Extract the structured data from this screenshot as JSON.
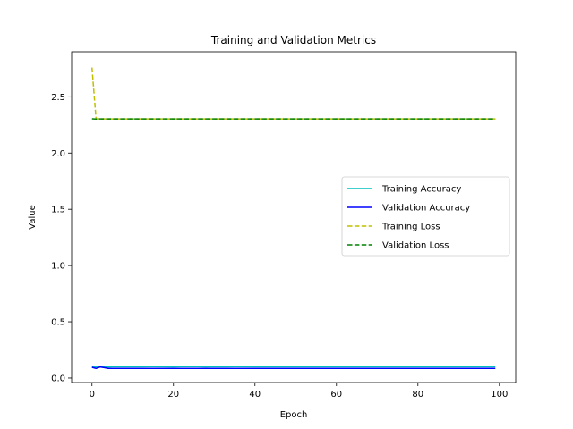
{
  "chart_data": {
    "type": "line",
    "title": "Training and Validation Metrics",
    "xlabel": "Epoch",
    "ylabel": "Value",
    "xlim": [
      -5,
      104
    ],
    "ylim": [
      -0.04,
      2.9
    ],
    "x_ticks": [
      0,
      20,
      40,
      60,
      80,
      100
    ],
    "x_tick_labels": [
      "0",
      "20",
      "40",
      "60",
      "80",
      "100"
    ],
    "y_ticks": [
      0.0,
      0.5,
      1.0,
      1.5,
      2.0,
      2.5
    ],
    "y_tick_labels": [
      "0.0",
      "0.5",
      "1.0",
      "1.5",
      "2.0",
      "2.5"
    ],
    "grid": false,
    "legend_position": "center-right",
    "series": [
      {
        "name": "Training Accuracy",
        "color": "#00bfbf",
        "style": "solid",
        "points": [
          [
            0,
            0.1
          ],
          [
            1,
            0.098
          ],
          [
            2,
            0.1
          ],
          [
            3,
            0.099
          ],
          [
            4,
            0.098
          ],
          [
            5,
            0.1
          ],
          [
            6,
            0.101
          ],
          [
            8,
            0.1
          ],
          [
            10,
            0.101
          ],
          [
            12,
            0.1
          ],
          [
            15,
            0.101
          ],
          [
            18,
            0.1
          ],
          [
            20,
            0.099
          ],
          [
            22,
            0.101
          ],
          [
            24,
            0.102
          ],
          [
            26,
            0.101
          ],
          [
            28,
            0.099
          ],
          [
            30,
            0.101
          ],
          [
            32,
            0.1
          ],
          [
            35,
            0.101
          ],
          [
            40,
            0.1
          ],
          [
            50,
            0.1
          ],
          [
            60,
            0.1
          ],
          [
            70,
            0.1
          ],
          [
            80,
            0.1
          ],
          [
            90,
            0.1
          ],
          [
            99,
            0.1
          ]
        ]
      },
      {
        "name": "Validation Accuracy",
        "color": "#0000ff",
        "style": "solid",
        "points": [
          [
            0,
            0.095
          ],
          [
            1,
            0.085
          ],
          [
            2,
            0.098
          ],
          [
            3,
            0.092
          ],
          [
            4,
            0.085
          ],
          [
            5,
            0.085
          ],
          [
            10,
            0.085
          ],
          [
            20,
            0.085
          ],
          [
            30,
            0.085
          ],
          [
            40,
            0.085
          ],
          [
            50,
            0.085
          ],
          [
            60,
            0.085
          ],
          [
            70,
            0.085
          ],
          [
            80,
            0.085
          ],
          [
            90,
            0.085
          ],
          [
            99,
            0.085
          ]
        ]
      },
      {
        "name": "Training Loss",
        "color": "#bfbf00",
        "style": "dashed",
        "points": [
          [
            0,
            2.76
          ],
          [
            1,
            2.305
          ],
          [
            2,
            2.303
          ],
          [
            5,
            2.303
          ],
          [
            10,
            2.303
          ],
          [
            20,
            2.303
          ],
          [
            30,
            2.303
          ],
          [
            40,
            2.303
          ],
          [
            50,
            2.303
          ],
          [
            60,
            2.303
          ],
          [
            70,
            2.303
          ],
          [
            80,
            2.303
          ],
          [
            90,
            2.303
          ],
          [
            99,
            2.303
          ]
        ]
      },
      {
        "name": "Validation Loss",
        "color": "#008000",
        "style": "dashed",
        "points": [
          [
            0,
            2.304
          ],
          [
            1,
            2.302
          ],
          [
            2,
            2.303
          ],
          [
            5,
            2.303
          ],
          [
            10,
            2.303
          ],
          [
            20,
            2.303
          ],
          [
            30,
            2.303
          ],
          [
            40,
            2.303
          ],
          [
            50,
            2.303
          ],
          [
            60,
            2.303
          ],
          [
            70,
            2.303
          ],
          [
            80,
            2.303
          ],
          [
            90,
            2.303
          ],
          [
            99,
            2.303
          ]
        ]
      }
    ]
  }
}
